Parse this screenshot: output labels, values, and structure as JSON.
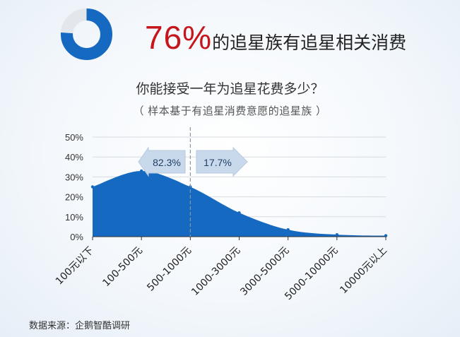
{
  "headline": {
    "percent": "76%",
    "text": "的追星族有追星相关消费",
    "donut_fraction": 0.76,
    "color_highlight": "#c4161c"
  },
  "chart_data": {
    "type": "area",
    "title": "你能接受一年为追星花费多少？",
    "subtitle": "（ 样本基于有追星消费意愿的追星族 ）",
    "categories": [
      "100元以下",
      "100-500元",
      "500-1000元",
      "1000-3000元",
      "3000-5000元",
      "5000-10000元",
      "10000元以上"
    ],
    "values": [
      25,
      33,
      25,
      12,
      3.5,
      1,
      0.5
    ],
    "yticks": [
      "50%",
      "40%",
      "30%",
      "20%",
      "10%",
      "0%"
    ],
    "ylim": [
      0,
      50
    ],
    "grid": true,
    "fill_color": "#1669c0",
    "divider_after_category": "500-1000元",
    "annotations": {
      "left": "82.3%",
      "right": "17.7%"
    }
  },
  "source": "数据来源：企鹅智酷调研"
}
